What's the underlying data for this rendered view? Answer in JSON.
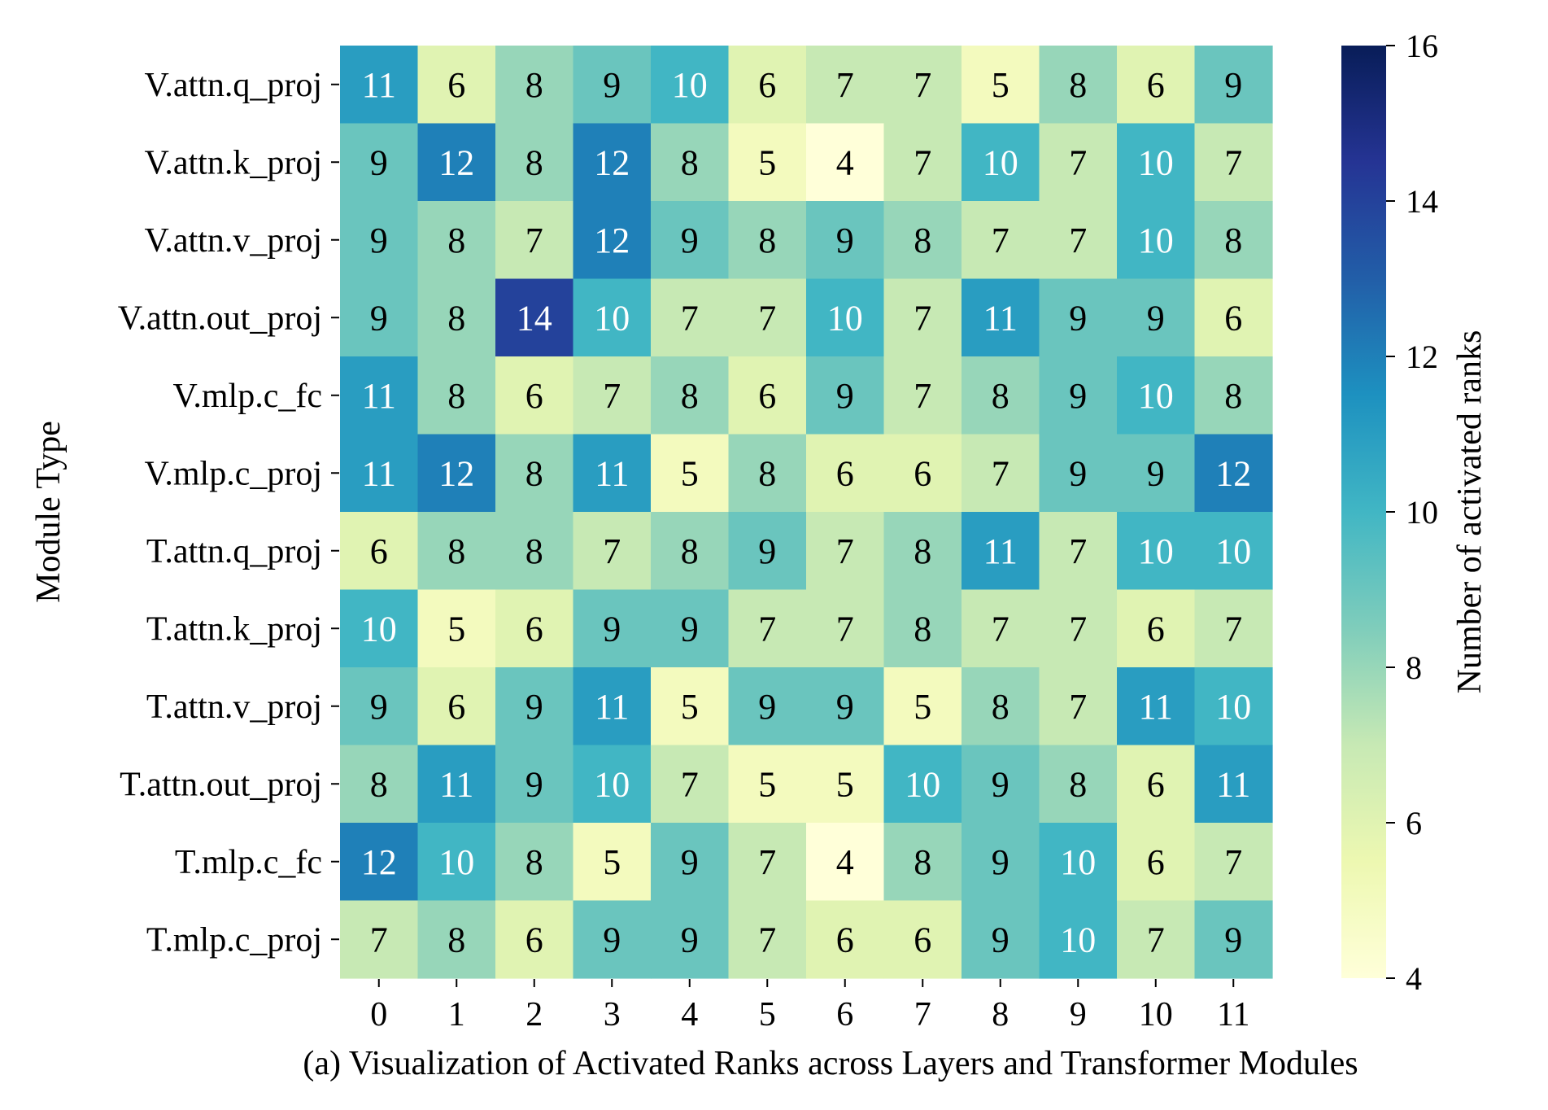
{
  "chart_data": {
    "type": "heatmap",
    "title": "(a) Visualization of Activated Ranks across Layers and Transformer Modules",
    "xlabel": "",
    "ylabel": "Module Type",
    "colorbar_label": "Number of activated ranks",
    "x_categories": [
      "0",
      "1",
      "2",
      "3",
      "4",
      "5",
      "6",
      "7",
      "8",
      "9",
      "10",
      "11"
    ],
    "y_categories": [
      "V.attn.q_proj",
      "V.attn.k_proj",
      "V.attn.v_proj",
      "V.attn.out_proj",
      "V.mlp.c_fc",
      "V.mlp.c_proj",
      "T.attn.q_proj",
      "T.attn.k_proj",
      "T.attn.v_proj",
      "T.attn.out_proj",
      "T.mlp.c_fc",
      "T.mlp.c_proj"
    ],
    "values": [
      [
        11,
        6,
        8,
        9,
        10,
        6,
        7,
        7,
        5,
        8,
        6,
        9
      ],
      [
        9,
        12,
        8,
        12,
        8,
        5,
        4,
        7,
        10,
        7,
        10,
        7
      ],
      [
        9,
        8,
        7,
        12,
        9,
        8,
        9,
        8,
        7,
        7,
        10,
        8
      ],
      [
        9,
        8,
        14,
        10,
        7,
        7,
        10,
        7,
        11,
        9,
        9,
        6
      ],
      [
        11,
        8,
        6,
        7,
        8,
        6,
        9,
        7,
        8,
        9,
        10,
        8
      ],
      [
        11,
        12,
        8,
        11,
        5,
        8,
        6,
        6,
        7,
        9,
        9,
        12
      ],
      [
        6,
        8,
        8,
        7,
        8,
        9,
        7,
        8,
        11,
        7,
        10,
        10
      ],
      [
        10,
        5,
        6,
        9,
        9,
        7,
        7,
        8,
        7,
        7,
        6,
        7
      ],
      [
        9,
        6,
        9,
        11,
        5,
        9,
        9,
        5,
        8,
        7,
        11,
        10
      ],
      [
        8,
        11,
        9,
        10,
        7,
        5,
        5,
        10,
        9,
        8,
        6,
        11
      ],
      [
        12,
        10,
        8,
        5,
        9,
        7,
        4,
        8,
        9,
        10,
        6,
        7
      ],
      [
        7,
        8,
        6,
        9,
        9,
        7,
        6,
        6,
        9,
        10,
        7,
        9
      ]
    ],
    "vmin": 4,
    "vmax": 16,
    "colorbar_ticks": [
      "4",
      "6",
      "8",
      "10",
      "12",
      "14",
      "16"
    ],
    "colormap": "YlGnBu",
    "colormap_stops": [
      "#ffffd9",
      "#edf8b1",
      "#c7e9b4",
      "#7fcdbb",
      "#41b6c4",
      "#1d91c0",
      "#225ea8",
      "#253494",
      "#081d58"
    ],
    "annotation_dark_color": "#000000",
    "annotation_light_color": "#ffffff",
    "grid": false,
    "legend": "colorbar-right"
  }
}
